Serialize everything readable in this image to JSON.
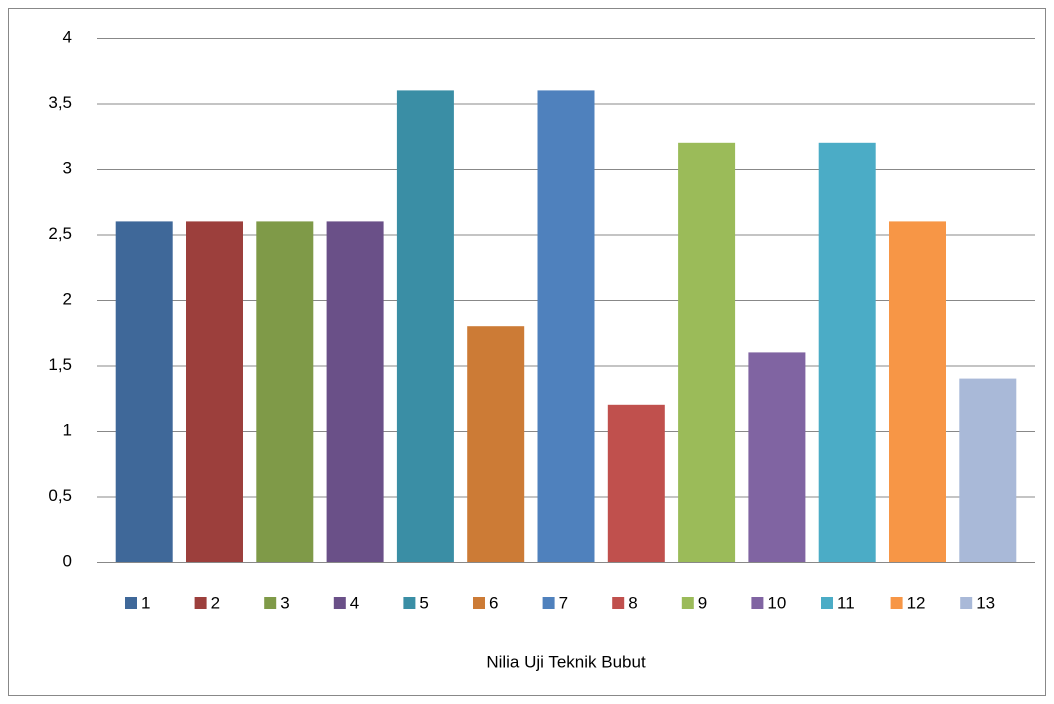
{
  "chart_data": {
    "type": "bar",
    "categories": [
      "Nilia Uji Teknik Bubut"
    ],
    "series": [
      {
        "name": "1",
        "color": "#3f6899",
        "values": [
          2.6
        ]
      },
      {
        "name": "2",
        "color": "#9c3f3c",
        "values": [
          2.6
        ]
      },
      {
        "name": "3",
        "color": "#7f9a48",
        "values": [
          2.6
        ]
      },
      {
        "name": "4",
        "color": "#6a5088",
        "values": [
          2.6
        ]
      },
      {
        "name": "5",
        "color": "#3a8ea5",
        "values": [
          3.6
        ]
      },
      {
        "name": "6",
        "color": "#cc7b36",
        "values": [
          1.8
        ]
      },
      {
        "name": "7",
        "color": "#4f81bd",
        "values": [
          3.6
        ]
      },
      {
        "name": "8",
        "color": "#c0504d",
        "values": [
          1.2
        ]
      },
      {
        "name": "9",
        "color": "#9bbb59",
        "values": [
          3.2
        ]
      },
      {
        "name": "10",
        "color": "#8064a2",
        "values": [
          1.6
        ]
      },
      {
        "name": "11",
        "color": "#4bacc6",
        "values": [
          3.2
        ]
      },
      {
        "name": "12",
        "color": "#f79646",
        "values": [
          2.6
        ]
      },
      {
        "name": "13",
        "color": "#a9b9d8",
        "values": [
          1.4
        ]
      }
    ],
    "ylim": [
      0,
      4
    ],
    "yticks": [
      0,
      {
        "value": 0.5,
        "label": "0,5"
      },
      1,
      {
        "value": 1.5,
        "label": "1,5"
      },
      2,
      {
        "value": 2.5,
        "label": "2,5"
      },
      3,
      {
        "value": 3.5,
        "label": "3,5"
      },
      4
    ],
    "grid": true,
    "legend": "bottom"
  }
}
